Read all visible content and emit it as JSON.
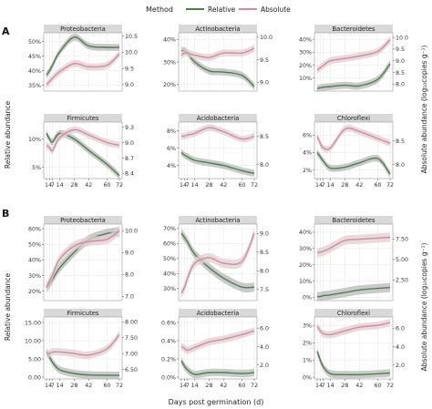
{
  "figure": {
    "legend": {
      "title": "Method",
      "entries": [
        {
          "name": "Relative",
          "color": "#4e7d4e"
        },
        {
          "name": "Absolute",
          "color": "#d48a9c"
        }
      ]
    },
    "panel_labels": [
      "A",
      "B"
    ],
    "left_axis_label": "Relative abundance",
    "right_axis_label": "Absolute abundance (log₁₀copies g⁻¹)",
    "x_axis_label": "Days post germination (d)",
    "x_ticks": [
      "1",
      "4",
      "7",
      "14",
      "28",
      "42",
      "60",
      "72"
    ],
    "colors": {
      "relative": "#4e7d4e",
      "absolute": "#d48a9c",
      "relative_ribbon": "#b8b8b8",
      "absolute_ribbon": "#e0cfd3",
      "strip": "#d9d9d9",
      "panel_bg": "#ffffff",
      "grid": "#e6e6e6"
    }
  },
  "chart_data": [
    {
      "type": "line",
      "group": "A",
      "title": "Proteobacteria",
      "x": [
        1,
        4,
        7,
        14,
        28,
        42,
        60,
        72
      ],
      "left_ticks": [
        "35%",
        "40%",
        "45%",
        "50%"
      ],
      "ylim_left": [
        33,
        53
      ],
      "right_ticks": [
        "9.0",
        "9.5",
        "10.0",
        "10.5"
      ],
      "ylim_right": [
        8.8,
        10.6
      ],
      "series": [
        {
          "name": "Relative",
          "values": [
            38.5,
            40,
            42,
            46.5,
            51.5,
            48.5,
            48,
            48
          ]
        },
        {
          "name": "Absolute",
          "values": [
            9.0,
            9.1,
            9.2,
            9.4,
            9.65,
            9.55,
            9.6,
            9.95
          ]
        }
      ]
    },
    {
      "type": "line",
      "group": "A",
      "title": "Actinobacteria",
      "x": [
        1,
        4,
        7,
        14,
        28,
        42,
        60,
        72
      ],
      "left_ticks": [
        "20%",
        "30%",
        "40%"
      ],
      "ylim_left": [
        17,
        43
      ],
      "right_ticks": [
        "9.0",
        "9.5",
        "10.0"
      ],
      "ylim_right": [
        8.8,
        10.1
      ],
      "series": [
        {
          "name": "Relative",
          "values": [
            35,
            35,
            34,
            30,
            26,
            25.5,
            24,
            19
          ]
        },
        {
          "name": "Absolute",
          "values": [
            9.6,
            9.65,
            9.65,
            9.6,
            9.55,
            9.65,
            9.65,
            9.75
          ]
        }
      ]
    },
    {
      "type": "line",
      "group": "A",
      "title": "Bacteroidetes",
      "x": [
        1,
        4,
        7,
        14,
        28,
        42,
        60,
        72
      ],
      "left_ticks": [
        "10%",
        "20%",
        "30%",
        "40%"
      ],
      "ylim_left": [
        0,
        45
      ],
      "right_ticks": [
        "8.0",
        "8.5",
        "9.0",
        "9.5",
        "10.0"
      ],
      "ylim_right": [
        7.7,
        10.2
      ],
      "series": [
        {
          "name": "Relative",
          "values": [
            2,
            2.5,
            3,
            3.5,
            4.5,
            4,
            9,
            21
          ]
        },
        {
          "name": "Absolute",
          "values": [
            8.6,
            8.7,
            8.8,
            9.0,
            9.1,
            9.2,
            9.4,
            9.9
          ]
        }
      ]
    },
    {
      "type": "line",
      "group": "A",
      "title": "Firmicutes",
      "x": [
        1,
        4,
        7,
        14,
        28,
        42,
        60,
        72
      ],
      "left_ticks": [
        "5%",
        "10%"
      ],
      "ylim_left": [
        3,
        13
      ],
      "right_ticks": [
        "8.4",
        "8.7",
        "9.0",
        "9.3"
      ],
      "ylim_right": [
        8.3,
        9.4
      ],
      "series": [
        {
          "name": "Relative",
          "values": [
            11,
            10,
            9.5,
            11,
            10,
            8,
            5.5,
            3.5
          ]
        },
        {
          "name": "Absolute",
          "values": [
            8.95,
            8.9,
            8.85,
            9.1,
            9.25,
            9.15,
            9.0,
            8.95
          ]
        }
      ]
    },
    {
      "type": "line",
      "group": "A",
      "title": "Acidobacteria",
      "x": [
        1,
        4,
        7,
        14,
        28,
        42,
        60,
        72
      ],
      "left_ticks": [
        "4%",
        "6%",
        "8%"
      ],
      "ylim_left": [
        2.5,
        9
      ],
      "right_ticks": [
        "8.0",
        "8.5"
      ],
      "ylim_right": [
        7.75,
        8.75
      ],
      "series": [
        {
          "name": "Relative",
          "values": [
            5.5,
            5.2,
            5,
            4.6,
            4.3,
            4,
            3.4,
            3.1
          ]
        },
        {
          "name": "Absolute",
          "values": [
            8.5,
            8.5,
            8.52,
            8.55,
            8.65,
            8.58,
            8.45,
            8.5
          ]
        }
      ]
    },
    {
      "type": "line",
      "group": "A",
      "title": "Chloroflexi",
      "x": [
        1,
        4,
        7,
        14,
        28,
        42,
        60,
        72
      ],
      "left_ticks": [
        "2%",
        "4%",
        "6%"
      ],
      "ylim_left": [
        1,
        7.5
      ],
      "right_ticks": [
        "8.0",
        "8.5"
      ],
      "ylim_right": [
        7.7,
        8.9
      ],
      "series": [
        {
          "name": "Relative",
          "values": [
            4,
            3.5,
            3,
            2.2,
            2.3,
            2.8,
            3.3,
            1.5
          ]
        },
        {
          "name": "Absolute",
          "values": [
            8.6,
            8.45,
            8.35,
            8.35,
            8.75,
            8.7,
            8.55,
            8.45
          ]
        }
      ]
    },
    {
      "type": "line",
      "group": "B",
      "title": "Proteobacteria",
      "x": [
        1,
        4,
        7,
        14,
        28,
        42,
        60,
        72
      ],
      "left_ticks": [
        "20%",
        "30%",
        "40%",
        "50%",
        "60%"
      ],
      "ylim_left": [
        14,
        63
      ],
      "right_ticks": [
        "7.0",
        "8.0",
        "9.0",
        "10.0"
      ],
      "ylim_right": [
        6.8,
        10.3
      ],
      "series": [
        {
          "name": "Relative",
          "values": [
            22,
            25,
            28,
            35,
            45,
            53,
            57,
            58
          ]
        },
        {
          "name": "Absolute",
          "values": [
            7.4,
            7.7,
            8.0,
            8.7,
            9.3,
            9.5,
            9.6,
            10.0
          ]
        }
      ]
    },
    {
      "type": "line",
      "group": "B",
      "title": "Actinobacteria",
      "x": [
        1,
        4,
        7,
        14,
        28,
        42,
        60,
        72
      ],
      "left_ticks": [
        "30%",
        "40%",
        "50%",
        "60%",
        "70%"
      ],
      "ylim_left": [
        22,
        73
      ],
      "right_ticks": [
        "7.5",
        "8.0",
        "8.5",
        "9.0"
      ],
      "ylim_right": [
        7.2,
        9.25
      ],
      "series": [
        {
          "name": "Relative",
          "values": [
            67,
            64,
            61,
            53,
            44,
            37,
            31,
            31
          ]
        },
        {
          "name": "Absolute",
          "values": [
            7.4,
            7.55,
            7.8,
            8.2,
            8.35,
            8.2,
            8.25,
            9.0
          ]
        }
      ]
    },
    {
      "type": "line",
      "group": "B",
      "title": "Bacteroidetes",
      "x": [
        1,
        4,
        7,
        14,
        28,
        42,
        60,
        72
      ],
      "left_ticks": [
        "0%",
        "10%",
        "20%",
        "30%",
        "40%"
      ],
      "ylim_left": [
        -2,
        45
      ],
      "right_ticks": [
        "2.50",
        "5.00",
        "7.50"
      ],
      "ylim_right": [
        0,
        9.3
      ],
      "series": [
        {
          "name": "Relative",
          "values": [
            0.5,
            0.5,
            1,
            1.5,
            3,
            4.5,
            5.5,
            6
          ]
        },
        {
          "name": "Absolute",
          "values": [
            5.8,
            5.9,
            6.0,
            6.4,
            7.3,
            7.45,
            7.6,
            7.7
          ]
        }
      ]
    },
    {
      "type": "line",
      "group": "B",
      "title": "Firmicutes",
      "x": [
        1,
        4,
        7,
        14,
        28,
        42,
        60,
        72
      ],
      "left_ticks": [
        "0.00",
        "5.00",
        "10.00",
        "15.00"
      ],
      "ylim_left": [
        -0.5,
        16.5
      ],
      "right_ticks": [
        "6.50",
        "7.00",
        "7.50",
        "8.00"
      ],
      "ylim_right": [
        6.2,
        8.15
      ],
      "series": [
        {
          "name": "Relative",
          "values": [
            7,
            5.5,
            4,
            2,
            1,
            0.6,
            0.5,
            0.5
          ]
        },
        {
          "name": "Absolute",
          "values": [
            7.0,
            7.0,
            7.05,
            7.05,
            7.0,
            6.95,
            7.15,
            7.6
          ]
        }
      ]
    },
    {
      "type": "line",
      "group": "B",
      "title": "Acidobacteria",
      "x": [
        1,
        4,
        7,
        14,
        28,
        42,
        60,
        72
      ],
      "left_ticks": [
        "0.0%",
        "0.2%",
        "0.4%",
        "0.6%"
      ],
      "ylim_left": [
        -0.02,
        0.66
      ],
      "right_ticks": [
        "2.0",
        "4.0",
        "6.0"
      ],
      "ylim_right": [
        0.5,
        7.2
      ],
      "series": [
        {
          "name": "Relative",
          "values": [
            0.18,
            0.12,
            0.08,
            0.03,
            0.05,
            0.05,
            0.04,
            0.05
          ]
        },
        {
          "name": "Absolute",
          "values": [
            4.0,
            3.8,
            3.6,
            3.9,
            4.5,
            4.8,
            5.3,
            5.7
          ]
        }
      ]
    },
    {
      "type": "line",
      "group": "B",
      "title": "Chloroflexi",
      "x": [
        1,
        4,
        7,
        14,
        28,
        42,
        60,
        72
      ],
      "left_ticks": [
        "0%",
        "1%",
        "2%",
        "3%"
      ],
      "ylim_left": [
        -0.1,
        3.5
      ],
      "right_ticks": [
        "2.0",
        "4.0",
        "6.0"
      ],
      "ylim_right": [
        0.5,
        7.2
      ],
      "series": [
        {
          "name": "Relative",
          "values": [
            1.5,
            1.0,
            0.6,
            0.2,
            0.15,
            0.15,
            0.2,
            0.25
          ]
        },
        {
          "name": "Absolute",
          "values": [
            6.2,
            5.7,
            5.4,
            5.3,
            5.7,
            6.1,
            6.3,
            6.6
          ]
        }
      ]
    }
  ]
}
